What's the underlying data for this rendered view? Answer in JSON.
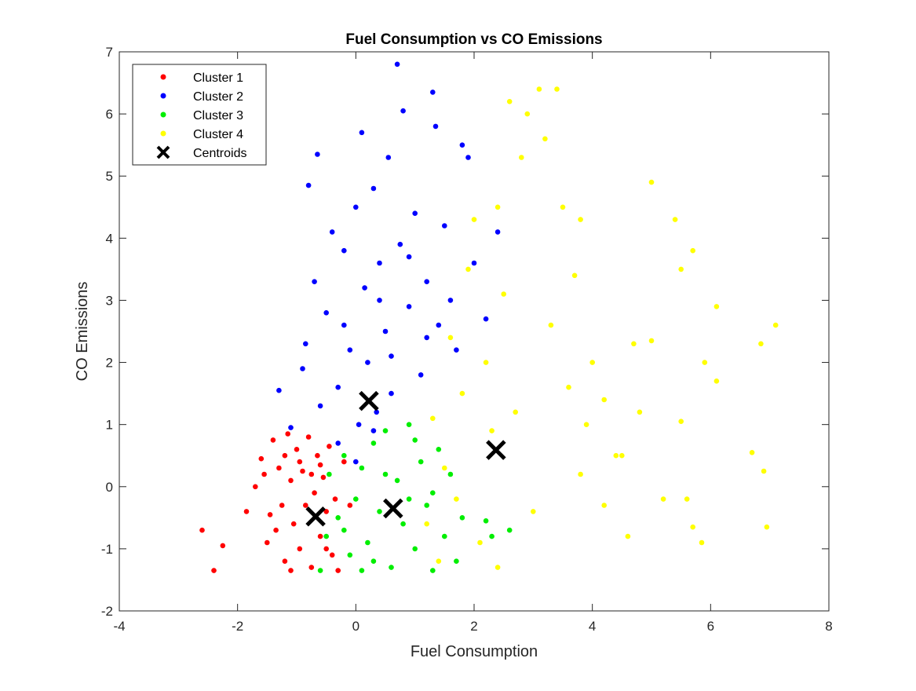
{
  "chart_data": {
    "type": "scatter",
    "title": "Fuel Consumption vs CO Emissions",
    "xlabel": "Fuel Consumption",
    "ylabel": "CO Emissions",
    "xlim": [
      -4,
      8
    ],
    "ylim": [
      -2,
      7
    ],
    "xticks": [
      -4,
      -2,
      0,
      2,
      4,
      6,
      8
    ],
    "yticks": [
      -2,
      -1,
      0,
      1,
      2,
      3,
      4,
      5,
      6,
      7
    ],
    "xtick_labels": [
      "-4",
      "-2",
      "0",
      "2",
      "4",
      "6",
      "8"
    ],
    "ytick_labels": [
      "-2",
      "-1",
      "0",
      "1",
      "2",
      "3",
      "4",
      "5",
      "6",
      "7"
    ],
    "grid": false,
    "legend_position": "top-left",
    "series": [
      {
        "name": "Cluster 1",
        "color": "#ff0000",
        "marker": "dot",
        "points": [
          [
            -2.6,
            -0.7
          ],
          [
            -2.25,
            -0.95
          ],
          [
            -2.4,
            -1.35
          ],
          [
            -1.85,
            -0.4
          ],
          [
            -1.7,
            0.0
          ],
          [
            -1.6,
            0.45
          ],
          [
            -1.5,
            -0.9
          ],
          [
            -1.4,
            0.75
          ],
          [
            -1.3,
            0.3
          ],
          [
            -1.25,
            -0.3
          ],
          [
            -1.2,
            -1.2
          ],
          [
            -1.15,
            0.85
          ],
          [
            -1.1,
            0.1
          ],
          [
            -1.05,
            -0.6
          ],
          [
            -1.0,
            0.6
          ],
          [
            -0.95,
            -1.0
          ],
          [
            -0.9,
            0.25
          ],
          [
            -0.85,
            -0.3
          ],
          [
            -0.8,
            0.8
          ],
          [
            -0.75,
            -1.3
          ],
          [
            -0.7,
            -0.1
          ],
          [
            -0.65,
            0.5
          ],
          [
            -0.6,
            -0.8
          ],
          [
            -0.55,
            0.15
          ],
          [
            -0.5,
            -0.4
          ],
          [
            -0.45,
            0.65
          ],
          [
            -0.4,
            -1.1
          ],
          [
            -0.35,
            -0.2
          ],
          [
            -0.3,
            -1.35
          ],
          [
            -0.2,
            0.4
          ],
          [
            -0.1,
            -0.3
          ],
          [
            -1.35,
            -0.7
          ],
          [
            -1.1,
            -1.35
          ],
          [
            -0.95,
            0.4
          ],
          [
            -0.75,
            0.2
          ],
          [
            -1.55,
            0.2
          ],
          [
            -1.45,
            -0.45
          ],
          [
            -1.2,
            0.5
          ],
          [
            -0.6,
            0.35
          ],
          [
            -0.5,
            -1.0
          ]
        ]
      },
      {
        "name": "Cluster 2",
        "color": "#0000ff",
        "marker": "dot",
        "points": [
          [
            -1.3,
            1.55
          ],
          [
            -1.1,
            0.95
          ],
          [
            -0.85,
            2.3
          ],
          [
            -0.8,
            4.85
          ],
          [
            -0.7,
            3.3
          ],
          [
            -0.65,
            5.35
          ],
          [
            -0.5,
            2.8
          ],
          [
            -0.4,
            4.1
          ],
          [
            -0.3,
            1.6
          ],
          [
            -0.2,
            3.8
          ],
          [
            -0.1,
            2.2
          ],
          [
            0.0,
            4.5
          ],
          [
            0.05,
            1.0
          ],
          [
            0.1,
            5.7
          ],
          [
            0.15,
            3.2
          ],
          [
            0.2,
            2.0
          ],
          [
            0.3,
            4.8
          ],
          [
            0.35,
            1.2
          ],
          [
            0.4,
            3.6
          ],
          [
            0.5,
            2.5
          ],
          [
            0.55,
            5.3
          ],
          [
            0.6,
            1.5
          ],
          [
            0.7,
            6.8
          ],
          [
            0.75,
            3.9
          ],
          [
            0.8,
            6.05
          ],
          [
            0.9,
            2.9
          ],
          [
            1.0,
            4.4
          ],
          [
            1.1,
            1.8
          ],
          [
            1.2,
            3.3
          ],
          [
            1.3,
            6.35
          ],
          [
            1.35,
            5.8
          ],
          [
            1.4,
            2.6
          ],
          [
            1.5,
            4.2
          ],
          [
            1.6,
            3.0
          ],
          [
            1.7,
            2.2
          ],
          [
            1.8,
            5.5
          ],
          [
            1.9,
            5.3
          ],
          [
            2.0,
            3.6
          ],
          [
            2.2,
            2.7
          ],
          [
            2.4,
            4.1
          ],
          [
            -0.9,
            1.9
          ],
          [
            -0.6,
            1.3
          ],
          [
            -0.3,
            0.7
          ],
          [
            0.0,
            0.4
          ],
          [
            0.3,
            0.9
          ],
          [
            0.6,
            2.1
          ],
          [
            -0.2,
            2.6
          ],
          [
            0.4,
            3.0
          ],
          [
            0.9,
            3.7
          ],
          [
            1.2,
            2.4
          ]
        ]
      },
      {
        "name": "Cluster 3",
        "color": "#00ee00",
        "marker": "dot",
        "points": [
          [
            -0.6,
            -1.35
          ],
          [
            -0.5,
            -0.8
          ],
          [
            -0.45,
            0.2
          ],
          [
            -0.3,
            -0.5
          ],
          [
            -0.2,
            0.5
          ],
          [
            -0.1,
            -1.1
          ],
          [
            0.0,
            -0.2
          ],
          [
            0.1,
            0.3
          ],
          [
            0.2,
            -0.9
          ],
          [
            0.3,
            0.7
          ],
          [
            0.4,
            -0.4
          ],
          [
            0.5,
            0.9
          ],
          [
            0.6,
            -1.3
          ],
          [
            0.7,
            0.1
          ],
          [
            0.8,
            -0.6
          ],
          [
            0.9,
            1.0
          ],
          [
            1.0,
            -1.0
          ],
          [
            1.1,
            0.4
          ],
          [
            1.2,
            -0.3
          ],
          [
            1.3,
            -1.35
          ],
          [
            1.4,
            0.6
          ],
          [
            1.5,
            -0.8
          ],
          [
            1.6,
            0.2
          ],
          [
            1.7,
            -1.2
          ],
          [
            1.8,
            -0.5
          ],
          [
            2.2,
            -0.55
          ],
          [
            2.3,
            -0.8
          ],
          [
            2.6,
            -0.7
          ],
          [
            0.1,
            -1.35
          ],
          [
            0.5,
            0.2
          ],
          [
            0.9,
            -0.2
          ],
          [
            1.3,
            -0.1
          ],
          [
            -0.2,
            -0.7
          ],
          [
            0.3,
            -1.2
          ],
          [
            1.0,
            0.75
          ]
        ]
      },
      {
        "name": "Cluster 4",
        "color": "#ffff00",
        "marker": "dot",
        "points": [
          [
            1.2,
            -0.6
          ],
          [
            1.3,
            1.1
          ],
          [
            1.4,
            -1.2
          ],
          [
            1.5,
            0.3
          ],
          [
            1.6,
            2.4
          ],
          [
            1.7,
            -0.2
          ],
          [
            1.8,
            1.5
          ],
          [
            1.9,
            3.5
          ],
          [
            2.0,
            4.3
          ],
          [
            2.1,
            -0.9
          ],
          [
            2.2,
            2.0
          ],
          [
            2.3,
            0.9
          ],
          [
            2.4,
            -1.3
          ],
          [
            2.5,
            3.1
          ],
          [
            2.6,
            6.2
          ],
          [
            2.7,
            1.2
          ],
          [
            2.8,
            5.3
          ],
          [
            2.9,
            6.0
          ],
          [
            3.0,
            -0.4
          ],
          [
            3.1,
            6.4
          ],
          [
            3.2,
            5.6
          ],
          [
            3.3,
            2.6
          ],
          [
            3.4,
            6.4
          ],
          [
            3.5,
            4.5
          ],
          [
            3.6,
            1.6
          ],
          [
            3.7,
            3.4
          ],
          [
            3.8,
            0.2
          ],
          [
            3.9,
            1.0
          ],
          [
            4.0,
            2.0
          ],
          [
            4.2,
            -0.3
          ],
          [
            4.4,
            0.5
          ],
          [
            4.6,
            -0.8
          ],
          [
            4.7,
            2.3
          ],
          [
            4.8,
            1.2
          ],
          [
            5.0,
            4.9
          ],
          [
            5.0,
            2.35
          ],
          [
            5.2,
            -0.2
          ],
          [
            5.4,
            4.3
          ],
          [
            5.5,
            3.5
          ],
          [
            5.5,
            1.05
          ],
          [
            5.6,
            -0.2
          ],
          [
            5.7,
            3.8
          ],
          [
            5.7,
            -0.65
          ],
          [
            5.85,
            -0.9
          ],
          [
            5.9,
            2.0
          ],
          [
            6.1,
            2.9
          ],
          [
            6.1,
            1.7
          ],
          [
            6.7,
            0.55
          ],
          [
            6.85,
            2.3
          ],
          [
            6.9,
            0.25
          ],
          [
            6.95,
            -0.65
          ],
          [
            7.1,
            2.6
          ],
          [
            2.4,
            4.5
          ],
          [
            3.8,
            4.3
          ],
          [
            4.2,
            1.4
          ],
          [
            4.5,
            0.5
          ]
        ]
      }
    ],
    "centroids": {
      "name": "Centroids",
      "color": "#000000",
      "marker": "x",
      "points": [
        [
          -0.68,
          -0.48
        ],
        [
          0.22,
          1.38
        ],
        [
          0.63,
          -0.35
        ],
        [
          2.37,
          0.59
        ]
      ]
    }
  }
}
